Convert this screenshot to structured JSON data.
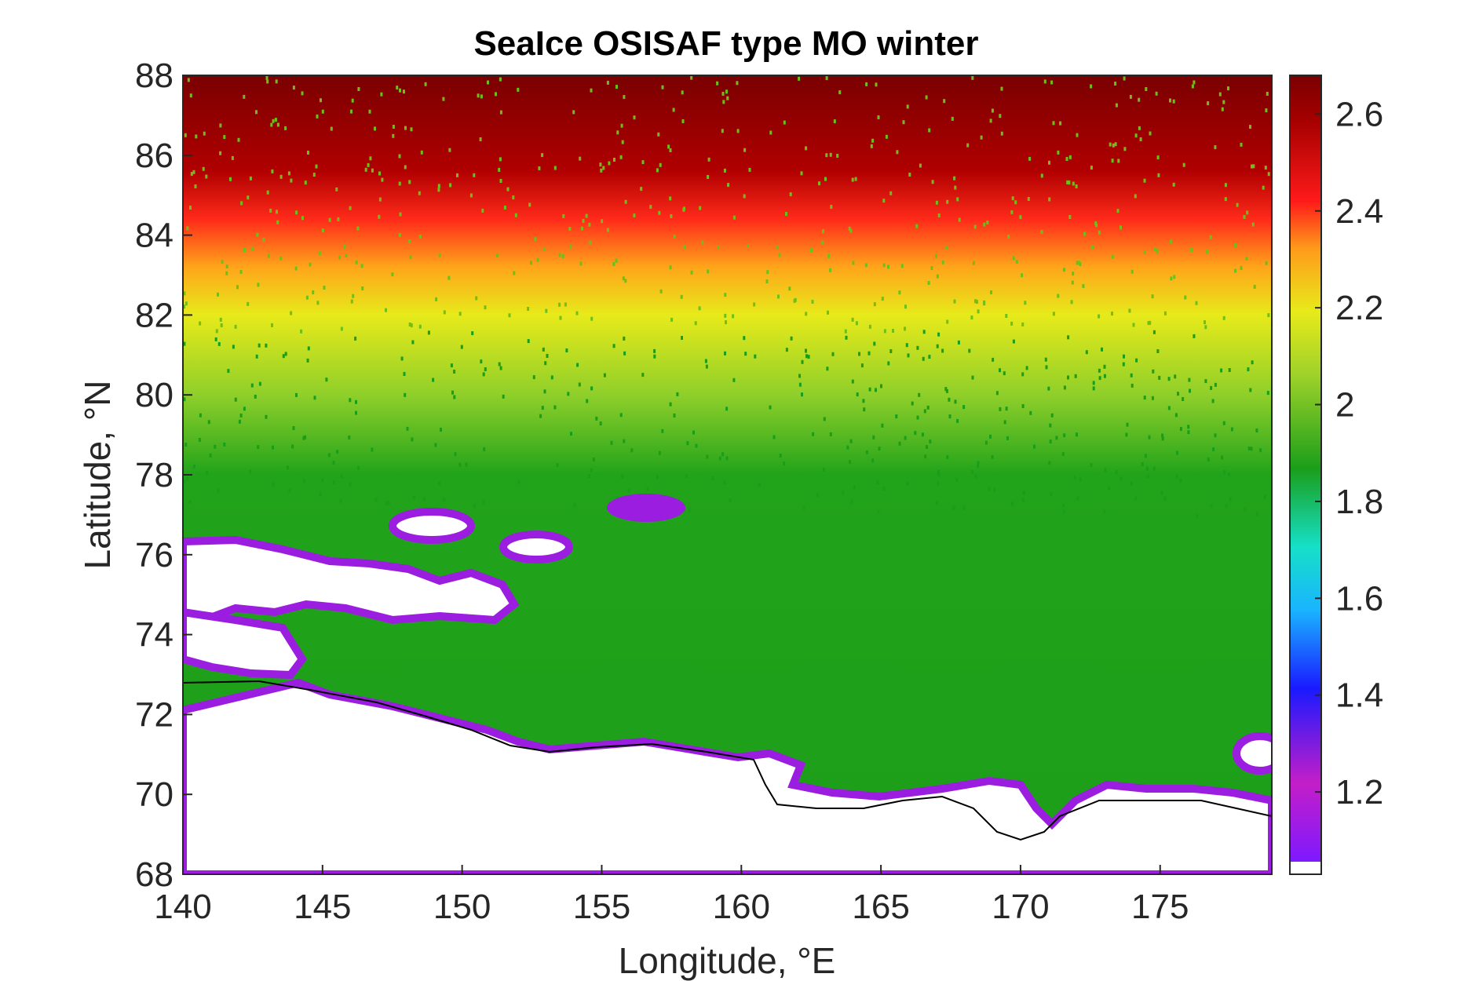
{
  "chart_data": {
    "type": "heatmap",
    "title": "SeaIce OSISAF type MO winter",
    "xlabel": "Longitude, °E",
    "ylabel": "Latitude, °N",
    "xlim": [
      140,
      179
    ],
    "ylim": [
      68,
      88
    ],
    "xticks": [
      "140",
      "145",
      "150",
      "155",
      "160",
      "165",
      "170",
      "175"
    ],
    "yticks": [
      "68",
      "70",
      "72",
      "74",
      "76",
      "78",
      "80",
      "82",
      "84",
      "86",
      "88"
    ],
    "colorbar": {
      "range": [
        1.03,
        2.68
      ],
      "ticks": [
        "1.2",
        "1.4",
        "1.6",
        "1.8",
        "2",
        "2.2",
        "2.4",
        "2.6"
      ],
      "colormap": [
        "#7d1aff",
        "#c41ec8",
        "#1a1aff",
        "#1ab4ff",
        "#16e0c8",
        "#1a9e1a",
        "#9fd22a",
        "#e8ea1a",
        "#ff9a1a",
        "#ff1a1a",
        "#a80000",
        "#7a0000"
      ]
    },
    "field_description": {
      "land_color": "#ffffff",
      "coast_fringe_color": "#9b1de0"
    }
  }
}
